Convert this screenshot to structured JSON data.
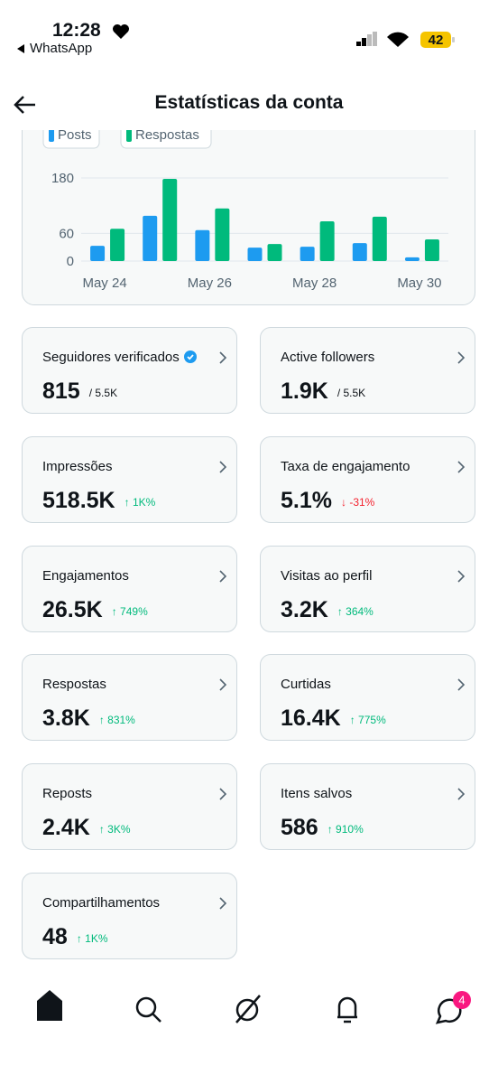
{
  "status_bar": {
    "time": "12:28",
    "back_app": "WhatsApp",
    "battery": "42"
  },
  "header": {
    "title": "Estatísticas da conta"
  },
  "chart_data": {
    "type": "bar",
    "categories": [
      "May 24",
      null,
      "May 26",
      null,
      "May 28",
      null,
      "May 30"
    ],
    "series": [
      {
        "name": "Posts",
        "color": "#1d9bf0",
        "values": [
          33,
          98,
          67,
          29,
          31,
          39,
          8
        ]
      },
      {
        "name": "Respostas",
        "color": "#00ba7c",
        "values": [
          70,
          178,
          114,
          37,
          86,
          96,
          47
        ]
      }
    ],
    "ylim": [
      0,
      180
    ],
    "yticks": [
      0,
      60,
      180
    ],
    "grid": true
  },
  "stats": [
    {
      "label": "Seguidores verificados",
      "value": "815",
      "detail": "/ 5.5K",
      "verified": true
    },
    {
      "label": "Active followers",
      "value": "1.9K",
      "detail": "/ 5.5K"
    },
    {
      "label": "Impressões",
      "value": "518.5K",
      "detail": "↑ 1K%",
      "trend": "up"
    },
    {
      "label": "Taxa de engajamento",
      "value": "5.1%",
      "detail": "↓ -31%",
      "trend": "down"
    },
    {
      "label": "Engajamentos",
      "value": "26.5K",
      "detail": "↑ 749%",
      "trend": "up"
    },
    {
      "label": "Visitas ao perfil",
      "value": "3.2K",
      "detail": "↑ 364%",
      "trend": "up"
    },
    {
      "label": "Respostas",
      "value": "3.8K",
      "detail": "↑ 831%",
      "trend": "up"
    },
    {
      "label": "Curtidas",
      "value": "16.4K",
      "detail": "↑ 775%",
      "trend": "up"
    },
    {
      "label": "Reposts",
      "value": "2.4K",
      "detail": "↑ 3K%",
      "trend": "up"
    },
    {
      "label": "Itens salvos",
      "value": "586",
      "detail": "↑ 910%",
      "trend": "up"
    },
    {
      "label": "Compartilhamentos",
      "value": "48",
      "detail": "↑ 1K%",
      "trend": "up"
    }
  ],
  "nav": {
    "badge": "4"
  }
}
